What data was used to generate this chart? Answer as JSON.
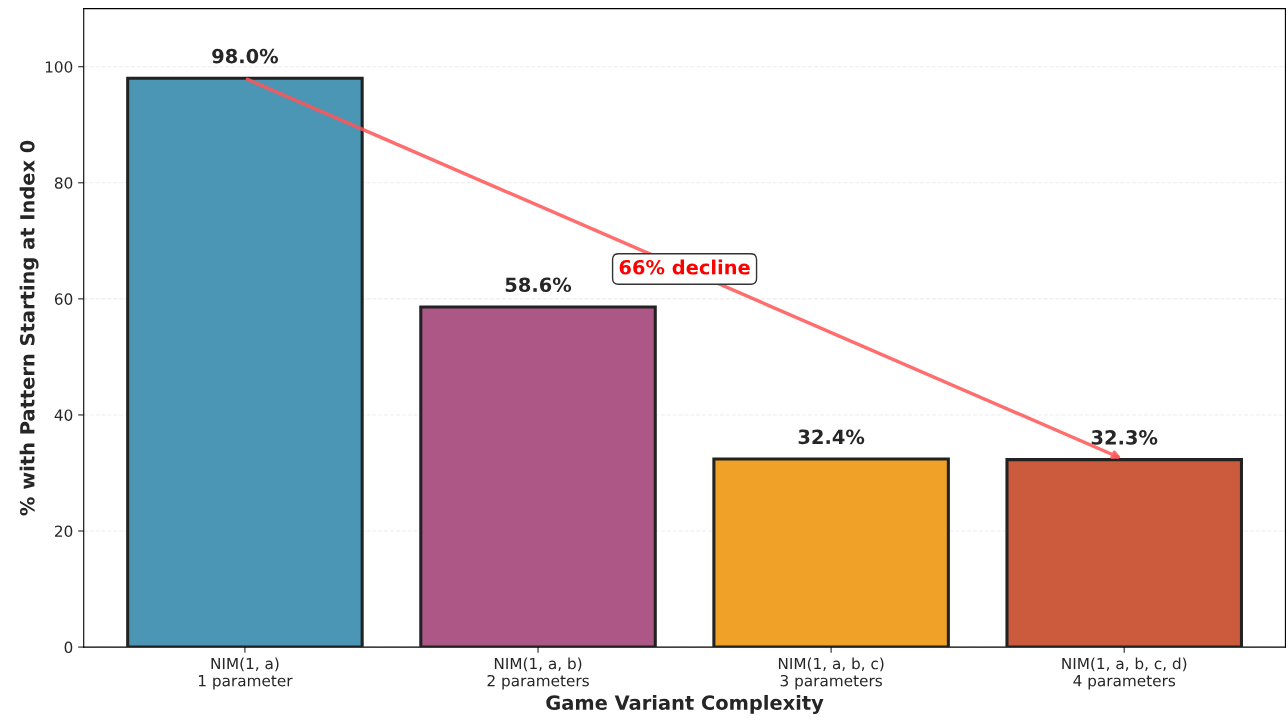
{
  "chart_data": {
    "type": "bar",
    "xlabel": "Game Variant Complexity",
    "ylabel": "% with Pattern Starting at Index 0",
    "categories": [
      "NIM(1, a)\n1 parameter",
      "NIM(1, a, b)\n2 parameters",
      "NIM(1, a, b, c)\n3 parameters",
      "NIM(1, a, b, c, d)\n4 parameters"
    ],
    "values": [
      98.0,
      58.6,
      32.4,
      32.3
    ],
    "colors": [
      "#4a96b4",
      "#ad5787",
      "#f0a128",
      "#cc5a3c"
    ],
    "value_labels": [
      "98.0%",
      "58.6%",
      "32.4%",
      "32.3%"
    ],
    "annotations": [
      "66% decline"
    ],
    "ylim": [
      0,
      110
    ],
    "yticks": [
      0,
      20,
      40,
      60,
      80,
      100
    ],
    "grid": "y",
    "legend": false
  }
}
